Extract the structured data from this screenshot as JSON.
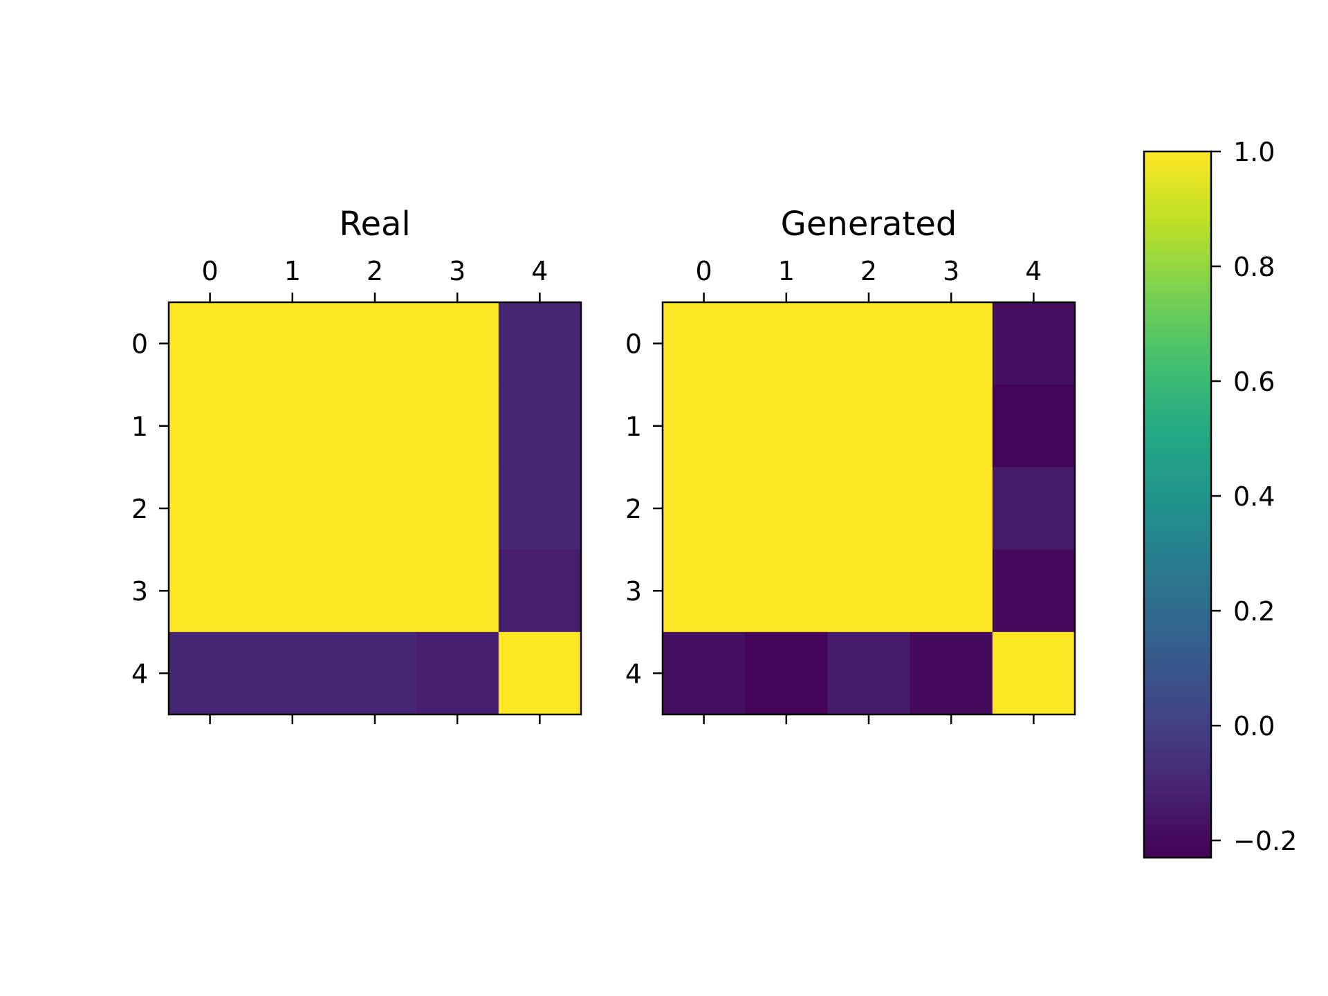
{
  "chart_data": [
    {
      "type": "heatmap",
      "title": "Real",
      "x_ticks": [
        "0",
        "1",
        "2",
        "3",
        "4"
      ],
      "y_ticks": [
        "0",
        "1",
        "2",
        "3",
        "4"
      ],
      "xlim": [
        -0.5,
        4.5
      ],
      "ylim": [
        4.5,
        -0.5
      ],
      "grid": false,
      "x_tick_position": "top",
      "values": [
        [
          1.0,
          1.0,
          1.0,
          1.0,
          -0.1
        ],
        [
          1.0,
          1.0,
          1.0,
          1.0,
          -0.1
        ],
        [
          1.0,
          1.0,
          1.0,
          1.0,
          -0.1
        ],
        [
          1.0,
          1.0,
          1.0,
          1.0,
          -0.13
        ],
        [
          -0.1,
          -0.1,
          -0.1,
          -0.13,
          1.0
        ]
      ]
    },
    {
      "type": "heatmap",
      "title": "Generated",
      "x_ticks": [
        "0",
        "1",
        "2",
        "3",
        "4"
      ],
      "y_ticks": [
        "0",
        "1",
        "2",
        "3",
        "4"
      ],
      "xlim": [
        -0.5,
        4.5
      ],
      "ylim": [
        4.5,
        -0.5
      ],
      "grid": false,
      "x_tick_position": "top",
      "values": [
        [
          1.0,
          1.0,
          1.0,
          1.0,
          -0.18
        ],
        [
          1.0,
          1.0,
          1.0,
          1.0,
          -0.22
        ],
        [
          1.0,
          1.0,
          1.0,
          1.0,
          -0.14
        ],
        [
          1.0,
          1.0,
          1.0,
          1.0,
          -0.2
        ],
        [
          -0.18,
          -0.22,
          -0.14,
          -0.2,
          1.0
        ]
      ]
    }
  ],
  "colorbar": {
    "colormap": "viridis",
    "vmin": -0.23,
    "vmax": 1.0,
    "ticks": [
      {
        "value": 1.0,
        "label": "1.0"
      },
      {
        "value": 0.8,
        "label": "0.8"
      },
      {
        "value": 0.6,
        "label": "0.6"
      },
      {
        "value": 0.4,
        "label": "0.4"
      },
      {
        "value": 0.2,
        "label": "0.2"
      },
      {
        "value": 0.0,
        "label": "0.0"
      },
      {
        "value": -0.2,
        "label": "−0.2"
      }
    ],
    "placement": "right"
  }
}
